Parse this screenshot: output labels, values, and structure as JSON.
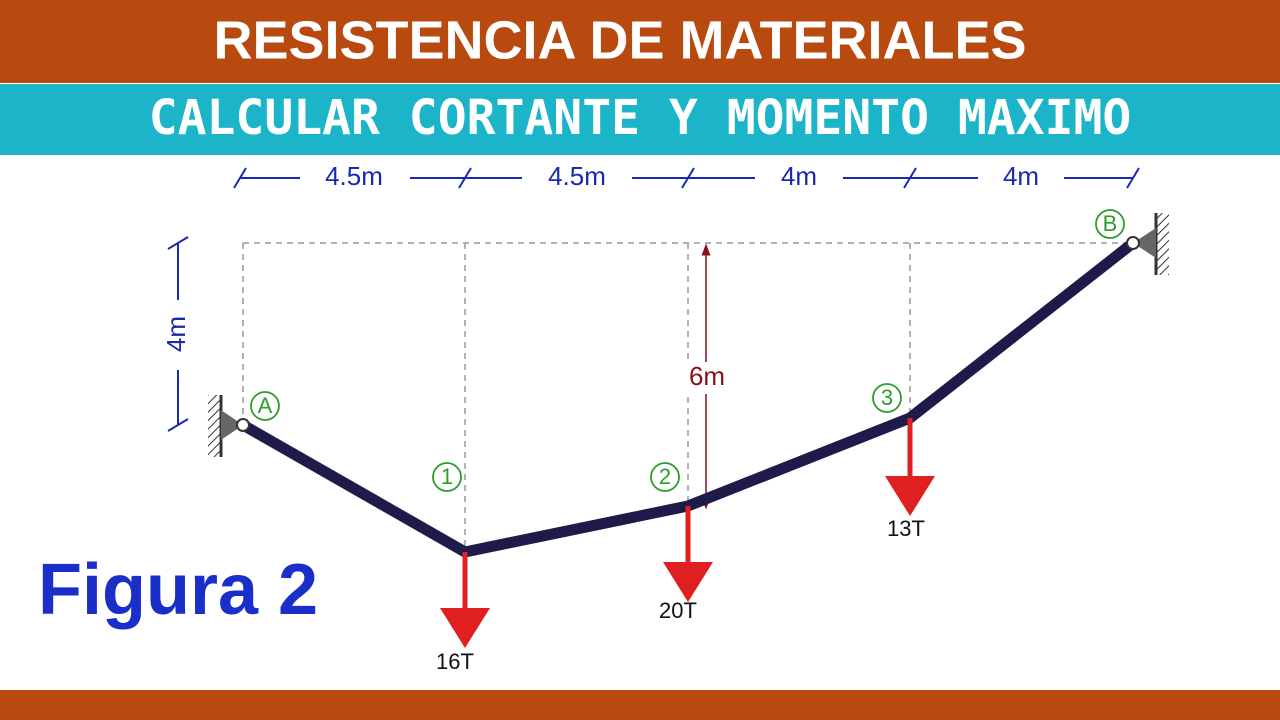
{
  "header": {
    "title": "RESISTENCIA DE MATERIALES",
    "subtitle": "CALCULAR  CORTANTE Y MOMENTO MAXIMO"
  },
  "dimensions": {
    "horizontal": [
      "4.5m",
      "4.5m",
      "4m",
      "4m"
    ],
    "vertical": "4m",
    "height": "6m"
  },
  "nodes": [
    {
      "label": "A"
    },
    {
      "label": "1"
    },
    {
      "label": "2"
    },
    {
      "label": "3"
    },
    {
      "label": "B"
    }
  ],
  "loads": [
    {
      "label": "16T"
    },
    {
      "label": "20T"
    },
    {
      "label": "13T"
    }
  ],
  "figure_label": "Figura 2"
}
